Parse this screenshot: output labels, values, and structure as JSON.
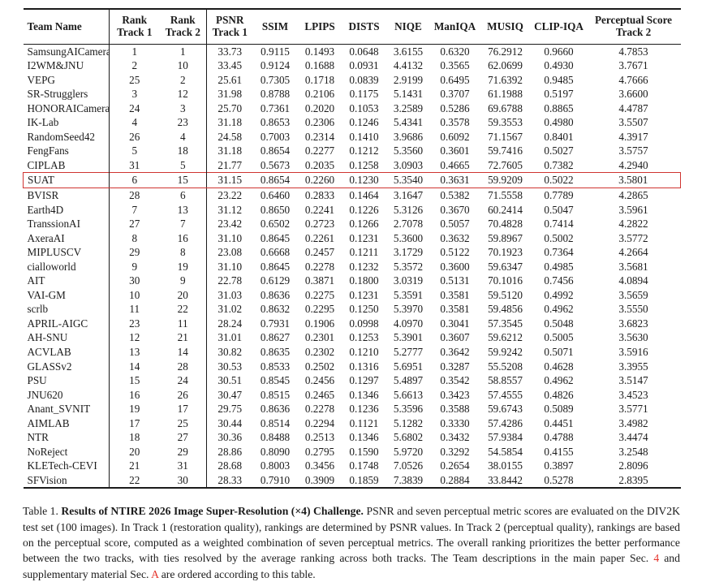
{
  "colors": {
    "ink": "#1b1b1b",
    "highlight_box_red": "#cf3431",
    "caption_link_red": "#e5342b",
    "background": "#ffffff"
  },
  "table": {
    "headers": [
      [
        "Team Name"
      ],
      [
        "Rank",
        "Track 1"
      ],
      [
        "Rank",
        "Track 2"
      ],
      [
        "PSNR",
        "Track 1"
      ],
      [
        "SSIM"
      ],
      [
        "LPIPS"
      ],
      [
        "DISTS"
      ],
      [
        "NIQE"
      ],
      [
        "ManIQA"
      ],
      [
        "MUSIQ"
      ],
      [
        "CLIP-IQA"
      ],
      [
        "Perceptual Score",
        "Track 2"
      ]
    ],
    "highlight_row_index": 9,
    "highlighted_team": "SUAT",
    "rows": [
      [
        "SamsungAICamera",
        "1",
        "1",
        "33.73",
        "0.9115",
        "0.1493",
        "0.0648",
        "3.6155",
        "0.6320",
        "76.2912",
        "0.9660",
        "4.7853"
      ],
      [
        "I2WM&JNU",
        "2",
        "10",
        "33.45",
        "0.9124",
        "0.1688",
        "0.0931",
        "4.4132",
        "0.3565",
        "62.0699",
        "0.4930",
        "3.7671"
      ],
      [
        "VEPG",
        "25",
        "2",
        "25.61",
        "0.7305",
        "0.1718",
        "0.0839",
        "2.9199",
        "0.6495",
        "71.6392",
        "0.9485",
        "4.7666"
      ],
      [
        "SR-Strugglers",
        "3",
        "12",
        "31.98",
        "0.8788",
        "0.2106",
        "0.1175",
        "5.1431",
        "0.3707",
        "61.1988",
        "0.5197",
        "3.6600"
      ],
      [
        "HONORAICamera",
        "24",
        "3",
        "25.70",
        "0.7361",
        "0.2020",
        "0.1053",
        "3.2589",
        "0.5286",
        "69.6788",
        "0.8865",
        "4.4787"
      ],
      [
        "IK-Lab",
        "4",
        "23",
        "31.18",
        "0.8653",
        "0.2306",
        "0.1246",
        "5.4341",
        "0.3578",
        "59.3553",
        "0.4980",
        "3.5507"
      ],
      [
        "RandomSeed42",
        "26",
        "4",
        "24.58",
        "0.7003",
        "0.2314",
        "0.1410",
        "3.9686",
        "0.6092",
        "71.1567",
        "0.8401",
        "4.3917"
      ],
      [
        "FengFans",
        "5",
        "18",
        "31.18",
        "0.8654",
        "0.2277",
        "0.1212",
        "5.3560",
        "0.3601",
        "59.7416",
        "0.5027",
        "3.5757"
      ],
      [
        "CIPLAB",
        "31",
        "5",
        "21.77",
        "0.5673",
        "0.2035",
        "0.1258",
        "3.0903",
        "0.4665",
        "72.7605",
        "0.7382",
        "4.2940"
      ],
      [
        "SUAT",
        "6",
        "15",
        "31.15",
        "0.8654",
        "0.2260",
        "0.1230",
        "5.3540",
        "0.3631",
        "59.9209",
        "0.5022",
        "3.5801"
      ],
      [
        "BVISR",
        "28",
        "6",
        "23.22",
        "0.6460",
        "0.2833",
        "0.1464",
        "3.1647",
        "0.5382",
        "71.5558",
        "0.7789",
        "4.2865"
      ],
      [
        "Earth4D",
        "7",
        "13",
        "31.12",
        "0.8650",
        "0.2241",
        "0.1226",
        "5.3126",
        "0.3670",
        "60.2414",
        "0.5047",
        "3.5961"
      ],
      [
        "TranssionAI",
        "27",
        "7",
        "23.42",
        "0.6502",
        "0.2723",
        "0.1266",
        "2.7078",
        "0.5057",
        "70.4828",
        "0.7414",
        "4.2822"
      ],
      [
        "AxeraAI",
        "8",
        "16",
        "31.10",
        "0.8645",
        "0.2261",
        "0.1231",
        "5.3600",
        "0.3632",
        "59.8967",
        "0.5002",
        "3.5772"
      ],
      [
        "MIPLUSCV",
        "29",
        "8",
        "23.08",
        "0.6668",
        "0.2457",
        "0.1211",
        "3.1729",
        "0.5122",
        "70.1923",
        "0.7364",
        "4.2664"
      ],
      [
        "cialloworld",
        "9",
        "19",
        "31.10",
        "0.8645",
        "0.2278",
        "0.1232",
        "5.3572",
        "0.3600",
        "59.6347",
        "0.4985",
        "3.5681"
      ],
      [
        "AIT",
        "30",
        "9",
        "22.78",
        "0.6129",
        "0.3871",
        "0.1800",
        "3.0319",
        "0.5131",
        "70.1016",
        "0.7456",
        "4.0894"
      ],
      [
        "VAI-GM",
        "10",
        "20",
        "31.03",
        "0.8636",
        "0.2275",
        "0.1231",
        "5.3591",
        "0.3581",
        "59.5120",
        "0.4992",
        "3.5659"
      ],
      [
        "scrlb",
        "11",
        "22",
        "31.02",
        "0.8632",
        "0.2295",
        "0.1250",
        "5.3970",
        "0.3581",
        "59.4856",
        "0.4962",
        "3.5550"
      ],
      [
        "APRIL-AIGC",
        "23",
        "11",
        "28.24",
        "0.7931",
        "0.1906",
        "0.0998",
        "4.0970",
        "0.3041",
        "57.3545",
        "0.5048",
        "3.6823"
      ],
      [
        "AH-SNU",
        "12",
        "21",
        "31.01",
        "0.8627",
        "0.2301",
        "0.1253",
        "5.3901",
        "0.3607",
        "59.6212",
        "0.5005",
        "3.5630"
      ],
      [
        "ACVLAB",
        "13",
        "14",
        "30.82",
        "0.8635",
        "0.2302",
        "0.1210",
        "5.2777",
        "0.3642",
        "59.9242",
        "0.5071",
        "3.5916"
      ],
      [
        "GLASSv2",
        "14",
        "28",
        "30.53",
        "0.8533",
        "0.2502",
        "0.1316",
        "5.6951",
        "0.3287",
        "55.5208",
        "0.4628",
        "3.3955"
      ],
      [
        "PSU",
        "15",
        "24",
        "30.51",
        "0.8545",
        "0.2456",
        "0.1297",
        "5.4897",
        "0.3542",
        "58.8557",
        "0.4962",
        "3.5147"
      ],
      [
        "JNU620",
        "16",
        "26",
        "30.47",
        "0.8515",
        "0.2465",
        "0.1346",
        "5.6613",
        "0.3423",
        "57.4555",
        "0.4826",
        "3.4523"
      ],
      [
        "Anant_SVNIT",
        "19",
        "17",
        "29.75",
        "0.8636",
        "0.2278",
        "0.1236",
        "5.3596",
        "0.3588",
        "59.6743",
        "0.5089",
        "3.5771"
      ],
      [
        "AIMLAB",
        "17",
        "25",
        "30.44",
        "0.8514",
        "0.2294",
        "0.1121",
        "5.1282",
        "0.3330",
        "57.4286",
        "0.4451",
        "3.4982"
      ],
      [
        "NTR",
        "18",
        "27",
        "30.36",
        "0.8488",
        "0.2513",
        "0.1346",
        "5.6802",
        "0.3432",
        "57.9384",
        "0.4788",
        "3.4474"
      ],
      [
        "NoReject",
        "20",
        "29",
        "28.86",
        "0.8090",
        "0.2795",
        "0.1590",
        "5.9720",
        "0.3292",
        "54.5854",
        "0.4155",
        "3.2548"
      ],
      [
        "KLETech-CEVI",
        "21",
        "31",
        "28.68",
        "0.8003",
        "0.3456",
        "0.1748",
        "7.0526",
        "0.2654",
        "38.0155",
        "0.3897",
        "2.8096"
      ],
      [
        "SFVision",
        "22",
        "30",
        "28.33",
        "0.7910",
        "0.3909",
        "0.1859",
        "7.3839",
        "0.2884",
        "33.8442",
        "0.5278",
        "2.8395"
      ]
    ]
  },
  "caption": {
    "label": "Table 1.",
    "title": "Results of NTIRE 2026 Image Super-Resolution (×4) Challenge.",
    "body_parts": [
      {
        "text": "PSNR and seven perceptual metric scores are evaluated on the DIV2K test set (100 images). In Track 1 (restoration quality), rankings are determined by PSNR values. In Track 2 (perceptual quality), rankings are based on the perceptual score, computed as a weighted combination of seven perceptual metrics. The overall ranking prioritizes the better performance between the two tracks, with ties resolved by the average ranking across both tracks. The Team descriptions in the main paper Sec. ",
        "style": "normal"
      },
      {
        "text": "4",
        "style": "link"
      },
      {
        "text": " and supplementary material Sec. ",
        "style": "normal"
      },
      {
        "text": "A",
        "style": "link"
      },
      {
        "text": " are ordered according to this table.",
        "style": "normal"
      }
    ]
  }
}
